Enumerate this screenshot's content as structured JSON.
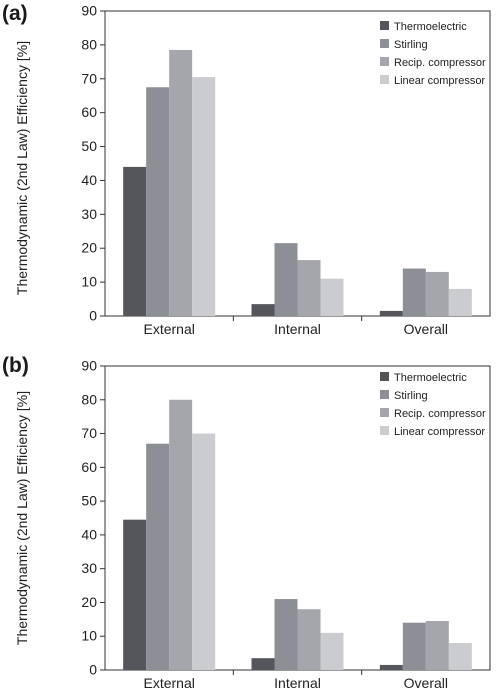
{
  "charts": [
    {
      "panel_label": "(a)",
      "ylabel": "Thermodynamic (2nd Law) Efficiency [%]"
    },
    {
      "panel_label": "(b)",
      "ylabel": "Thermodynamic (2nd Law) Efficiency [%]"
    }
  ],
  "chart_data": [
    {
      "type": "bar",
      "title": "",
      "xlabel": "",
      "ylabel": "Thermodynamic (2nd Law) Efficiency [%]",
      "ylim": [
        0,
        90
      ],
      "yticks": [
        0,
        10,
        20,
        30,
        40,
        50,
        60,
        70,
        80,
        90
      ],
      "grid": false,
      "legend_position": "top-right",
      "categories": [
        "External",
        "Internal",
        "Overall"
      ],
      "series": [
        {
          "name": "Thermoelectric",
          "color": "#55565b",
          "values": [
            44,
            3.5,
            1.5
          ]
        },
        {
          "name": "Stirling",
          "color": "#8d8f96",
          "values": [
            67.5,
            21.5,
            14
          ]
        },
        {
          "name": "Recip. compressor",
          "color": "#a4a6ac",
          "values": [
            78.5,
            16.5,
            13
          ]
        },
        {
          "name": "Linear compressor",
          "color": "#cbccd0",
          "values": [
            70.5,
            11,
            8
          ]
        }
      ]
    },
    {
      "type": "bar",
      "title": "",
      "xlabel": "",
      "ylabel": "Thermodynamic (2nd Law) Efficiency [%]",
      "ylim": [
        0,
        90
      ],
      "yticks": [
        0,
        10,
        20,
        30,
        40,
        50,
        60,
        70,
        80,
        90
      ],
      "grid": false,
      "legend_position": "top-right",
      "categories": [
        "External",
        "Internal",
        "Overall"
      ],
      "series": [
        {
          "name": "Thermoelectric",
          "color": "#55565b",
          "values": [
            44.5,
            3.5,
            1.5
          ]
        },
        {
          "name": "Stirling",
          "color": "#8d8f96",
          "values": [
            67,
            21,
            14
          ]
        },
        {
          "name": "Recip. compressor",
          "color": "#a4a6ac",
          "values": [
            80,
            18,
            14.5
          ]
        },
        {
          "name": "Linear compressor",
          "color": "#cbccd0",
          "values": [
            70,
            11,
            8
          ]
        }
      ]
    }
  ]
}
